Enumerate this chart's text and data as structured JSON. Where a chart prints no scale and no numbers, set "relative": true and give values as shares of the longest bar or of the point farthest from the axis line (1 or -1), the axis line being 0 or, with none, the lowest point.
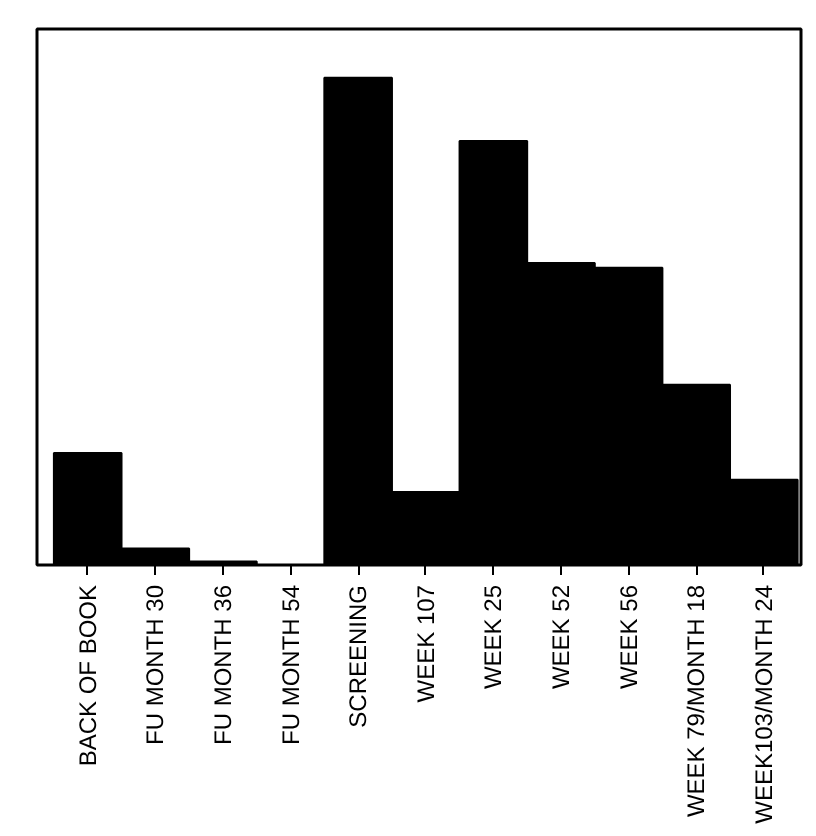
{
  "chart_data": {
    "type": "bar",
    "relative": true,
    "color": "#000000",
    "categories": [
      "BACK OF BOOK",
      "FU MONTH 30",
      "FU MONTH 36",
      "FU MONTH 54",
      "SCREENING",
      "WEEK 107",
      "WEEK 25",
      "WEEK 52",
      "WEEK 56",
      "WEEK 79/MONTH 18",
      "WEEK103/MONTH 24"
    ],
    "values": [
      0.23,
      0.034,
      0.007,
      0,
      1,
      0.15,
      0.87,
      0.62,
      0.61,
      0.37,
      0.175
    ],
    "grid": false
  }
}
